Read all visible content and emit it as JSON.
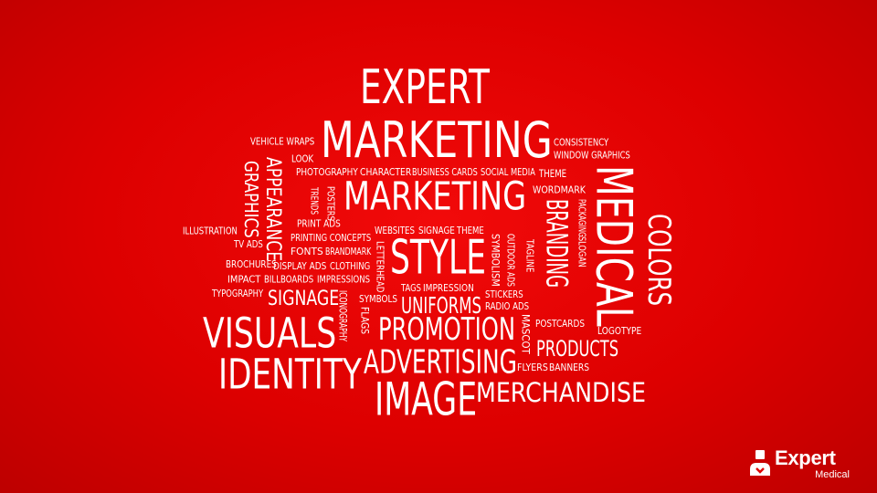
{
  "word_cloud": {
    "words": [
      {
        "text": "EXPERT"
      },
      {
        "text": "MARKETING"
      },
      {
        "text": "MARKETING"
      },
      {
        "text": "VEHICLE WRAPS"
      },
      {
        "text": "LOOK"
      },
      {
        "text": "CONSISTENCY"
      },
      {
        "text": "WINDOW GRAPHICS"
      },
      {
        "text": "PHOTOGRAPHY"
      },
      {
        "text": "CHARACTER"
      },
      {
        "text": "BUSINESS CARDS"
      },
      {
        "text": "SOCIAL MEDIA"
      },
      {
        "text": "THEME"
      },
      {
        "text": "WORDMARK"
      },
      {
        "text": "GRAPHICS"
      },
      {
        "text": "APPEARANCE"
      },
      {
        "text": "TRENDS"
      },
      {
        "text": "POSTERS"
      },
      {
        "text": "MEDICAL"
      },
      {
        "text": "COLORS"
      },
      {
        "text": "BRANDING"
      },
      {
        "text": "SLOGAN"
      },
      {
        "text": "PACKAGING"
      },
      {
        "text": "ILLUSTRATION"
      },
      {
        "text": "PRINT ADS"
      },
      {
        "text": "WEBSITES"
      },
      {
        "text": "SIGNAGE"
      },
      {
        "text": "THEME"
      },
      {
        "text": "TV ADS"
      },
      {
        "text": "PRINTING CONCEPTS"
      },
      {
        "text": "STYLE"
      },
      {
        "text": "SYMBOLISM"
      },
      {
        "text": "OUTDOOR ADS"
      },
      {
        "text": "TAGLINE"
      },
      {
        "text": "FONTS"
      },
      {
        "text": "BRANDMARK"
      },
      {
        "text": "LETTERHEAD"
      },
      {
        "text": "BROCHURES"
      },
      {
        "text": "DISPLAY ADS"
      },
      {
        "text": "CLOTHING"
      },
      {
        "text": "IMPACT"
      },
      {
        "text": "BILLBOARDS"
      },
      {
        "text": "IMPRESSIONS"
      },
      {
        "text": "TAGS"
      },
      {
        "text": "IMPRESSION"
      },
      {
        "text": "TYPOGRAPHY"
      },
      {
        "text": "SIGNAGE"
      },
      {
        "text": "SYMBOLS"
      },
      {
        "text": "UNIFORMS"
      },
      {
        "text": "STICKERS"
      },
      {
        "text": "RADIO ADS"
      },
      {
        "text": "ICONOGRAPHY"
      },
      {
        "text": "FLAGS"
      },
      {
        "text": "MASCOT"
      },
      {
        "text": "VISUALS"
      },
      {
        "text": "PROMOTION"
      },
      {
        "text": "POSTCARDS"
      },
      {
        "text": "LOGOTYPE"
      },
      {
        "text": "PRODUCTS"
      },
      {
        "text": "IDENTITY"
      },
      {
        "text": "ADVERTISING"
      },
      {
        "text": "FLYERS"
      },
      {
        "text": "BANNERS"
      },
      {
        "text": "IMAGE"
      },
      {
        "text": "MERCHANDISE"
      }
    ]
  },
  "logo": {
    "name": "Expert",
    "subtitle": "Medical",
    "icon": "person-icon"
  },
  "colors": {
    "background": "#e00000",
    "text": "#ffffff"
  }
}
